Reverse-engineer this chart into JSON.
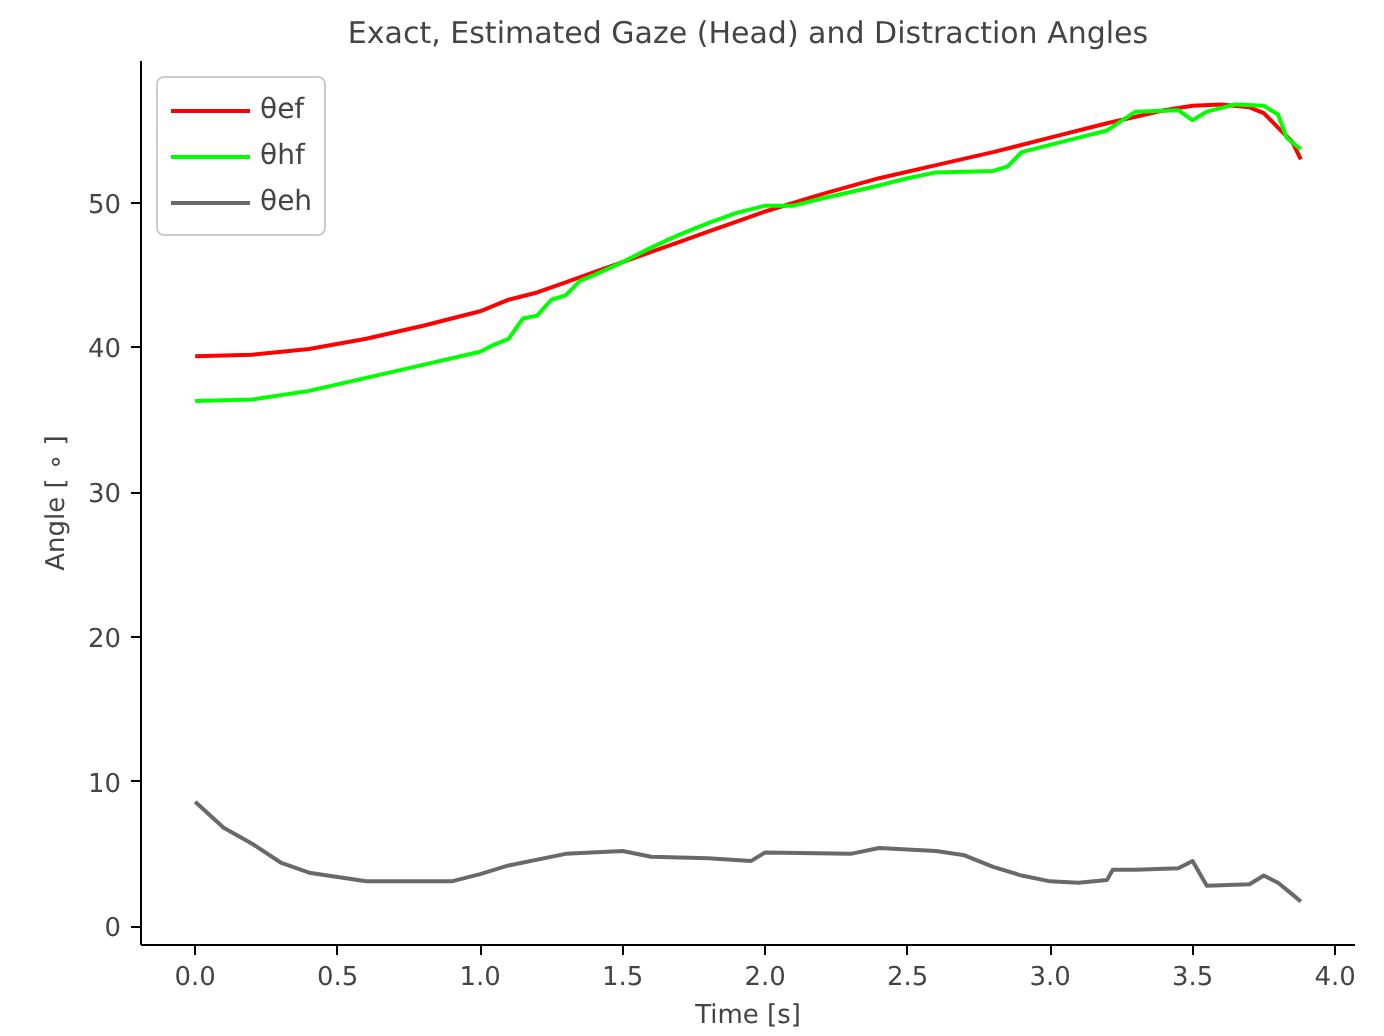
{
  "chart_data": {
    "type": "line",
    "title": "Exact, Estimated Gaze (Head) and Distraction Angles",
    "xlabel": "Time [s]",
    "ylabel": "Angle [ ∘ ]",
    "xlim": [
      -0.19,
      4.07
    ],
    "ylim": [
      -1.3,
      59.8
    ],
    "xticks": [
      {
        "value": 0,
        "label": "0.0"
      },
      0.5,
      {
        "value": 1,
        "label": "1.0"
      },
      1.5,
      {
        "value": 2,
        "label": "2.0"
      },
      2.5,
      {
        "value": 3,
        "label": "3.0"
      },
      3.5,
      {
        "value": 4,
        "label": "4.0"
      }
    ],
    "yticks": [
      0,
      10,
      20,
      30,
      40,
      50
    ],
    "grid": false,
    "legend": "top left",
    "marker": "none",
    "line_style": "solid",
    "series": [
      {
        "name": "θef",
        "color": "#ff0000",
        "x": [
          0,
          0.2,
          0.4,
          0.6,
          0.8,
          1.0,
          1.1,
          1.2,
          1.3,
          1.4,
          1.5,
          1.6,
          1.7,
          1.8,
          1.9,
          2.0,
          2.2,
          2.4,
          2.6,
          2.8,
          3.0,
          3.2,
          3.4,
          3.5,
          3.6,
          3.7,
          3.75,
          3.8,
          3.85,
          3.88
        ],
        "values": [
          39.4,
          39.5,
          39.9,
          40.6,
          41.5,
          42.5,
          43.3,
          43.8,
          44.5,
          45.2,
          45.9,
          46.6,
          47.3,
          48.0,
          48.7,
          49.4,
          50.6,
          51.7,
          52.6,
          53.5,
          54.5,
          55.5,
          56.4,
          56.7,
          56.8,
          56.6,
          56.2,
          55.2,
          54.2,
          53.0
        ]
      },
      {
        "name": "θhf",
        "color": "#00ff00",
        "x": [
          0,
          0.2,
          0.4,
          0.6,
          0.8,
          1.0,
          1.05,
          1.1,
          1.15,
          1.2,
          1.25,
          1.3,
          1.35,
          1.4,
          1.5,
          1.6,
          1.7,
          1.8,
          1.9,
          2.0,
          2.1,
          2.2,
          2.4,
          2.5,
          2.6,
          2.8,
          2.85,
          2.9,
          3.0,
          3.1,
          3.2,
          3.3,
          3.45,
          3.5,
          3.55,
          3.65,
          3.75,
          3.8,
          3.83,
          3.88
        ],
        "values": [
          36.3,
          36.4,
          37.0,
          37.9,
          38.8,
          39.7,
          40.2,
          40.6,
          42.0,
          42.2,
          43.3,
          43.6,
          44.6,
          45.0,
          45.9,
          46.9,
          47.8,
          48.6,
          49.3,
          49.8,
          49.8,
          50.3,
          51.2,
          51.7,
          52.1,
          52.2,
          52.5,
          53.5,
          54.0,
          54.5,
          55.0,
          56.3,
          56.4,
          55.7,
          56.3,
          56.8,
          56.7,
          56.1,
          54.5,
          53.7
        ]
      },
      {
        "name": "θeh",
        "color": "#696969",
        "x": [
          0,
          0.1,
          0.2,
          0.3,
          0.4,
          0.6,
          0.9,
          1.0,
          1.1,
          1.3,
          1.5,
          1.6,
          1.8,
          1.95,
          2.0,
          2.3,
          2.4,
          2.6,
          2.7,
          2.8,
          2.9,
          3.0,
          3.1,
          3.2,
          3.22,
          3.3,
          3.45,
          3.5,
          3.55,
          3.7,
          3.75,
          3.8,
          3.85,
          3.88
        ],
        "values": [
          8.6,
          6.8,
          5.7,
          4.4,
          3.7,
          3.1,
          3.1,
          3.6,
          4.2,
          5.0,
          5.2,
          4.8,
          4.7,
          4.5,
          5.1,
          5.0,
          5.4,
          5.2,
          4.9,
          4.1,
          3.5,
          3.1,
          3.0,
          3.2,
          3.9,
          3.9,
          4.0,
          4.5,
          2.8,
          2.9,
          3.5,
          3.0,
          2.2,
          1.7
        ]
      }
    ]
  }
}
